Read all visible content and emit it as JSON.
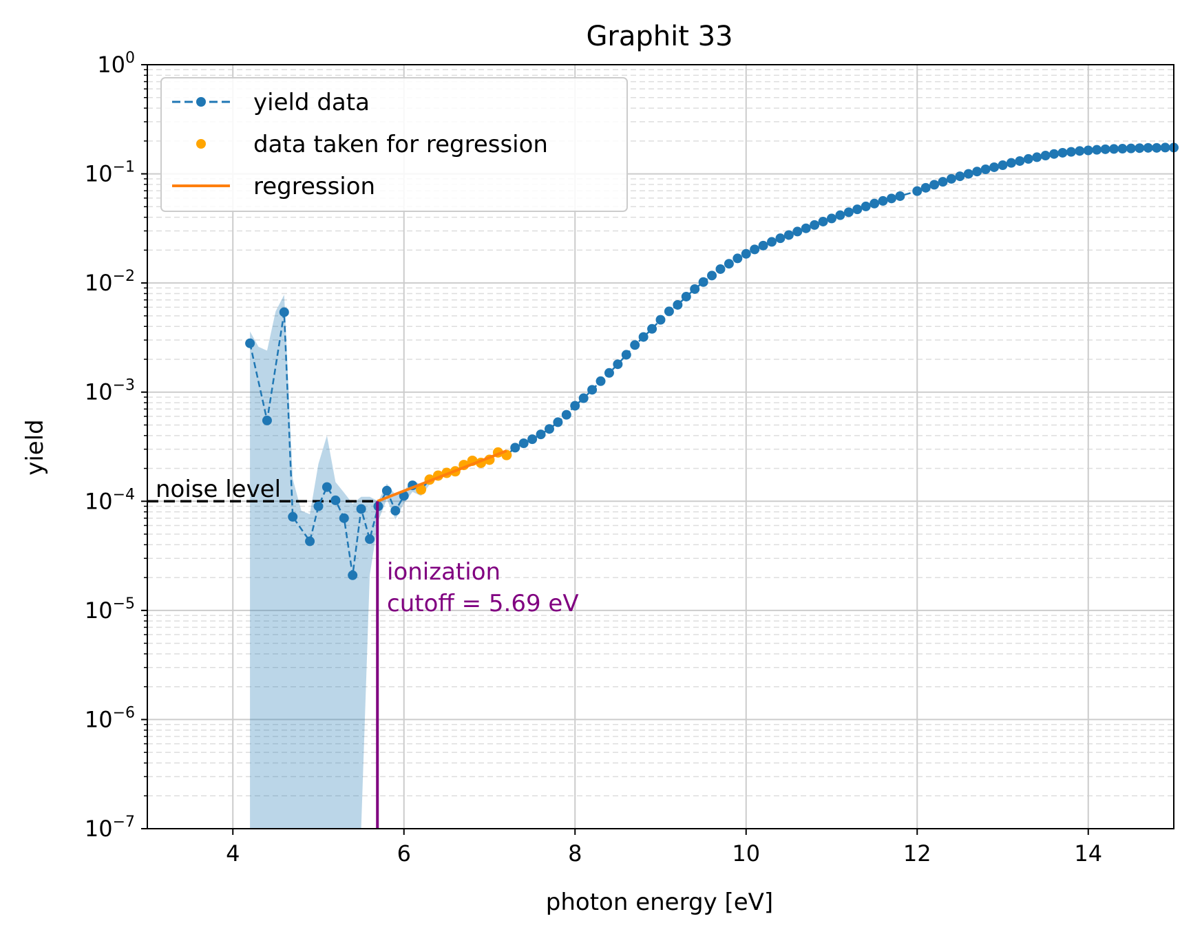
{
  "chart_data": {
    "type": "line",
    "title": "Graphit 33",
    "xlabel": "photon energy [eV]",
    "ylabel": "yield",
    "xlim": [
      3,
      15
    ],
    "ylim": [
      1e-07,
      1
    ],
    "yscale": "log",
    "grid": "on (major solid, minor dashed on y)",
    "legend_position": "top-left",
    "xticks": [
      "4",
      "6",
      "8",
      "10",
      "12",
      "14"
    ],
    "yticks": [
      {
        "base": "10",
        "exp": "−7"
      },
      {
        "base": "10",
        "exp": "−6"
      },
      {
        "base": "10",
        "exp": "−5"
      },
      {
        "base": "10",
        "exp": "−4"
      },
      {
        "base": "10",
        "exp": "−3"
      },
      {
        "base": "10",
        "exp": "−2"
      },
      {
        "base": "10",
        "exp": "−1"
      },
      {
        "base": "10",
        "exp": "0"
      }
    ],
    "legend": [
      {
        "label": "yield data",
        "style": "dashed-marker",
        "color": "#1f77b4"
      },
      {
        "label": "data taken for regression",
        "style": "marker",
        "color": "#ffa500"
      },
      {
        "label": "regression",
        "style": "line",
        "color": "#ff7f0e"
      }
    ],
    "series": [
      {
        "name": "yield data",
        "color": "#1f77b4",
        "x": [
          4.2,
          4.4,
          4.6,
          4.7,
          4.9,
          5.0,
          5.1,
          5.2,
          5.3,
          5.4,
          5.5,
          5.6,
          5.7,
          5.8,
          5.9,
          6.0,
          6.1,
          6.2,
          6.3,
          6.4,
          6.5,
          6.6,
          6.7,
          6.8,
          6.9,
          7.0,
          7.1,
          7.2,
          7.3,
          7.4,
          7.5,
          7.6,
          7.7,
          7.8,
          7.9,
          8.0,
          8.1,
          8.2,
          8.3,
          8.4,
          8.5,
          8.6,
          8.7,
          8.8,
          8.9,
          9.0,
          9.1,
          9.2,
          9.3,
          9.4,
          9.5,
          9.6,
          9.7,
          9.8,
          9.9,
          10.0,
          10.1,
          10.2,
          10.3,
          10.4,
          10.5,
          10.6,
          10.7,
          10.8,
          10.9,
          11.0,
          11.1,
          11.2,
          11.3,
          11.4,
          11.5,
          11.6,
          11.7,
          11.8,
          12.0,
          12.1,
          12.2,
          12.3,
          12.4,
          12.5,
          12.6,
          12.7,
          12.8,
          12.9,
          13.0,
          13.1,
          13.2,
          13.3,
          13.4,
          13.5,
          13.6,
          13.7,
          13.8,
          13.9,
          14.0,
          14.1,
          14.2,
          14.3,
          14.4,
          14.5,
          14.6,
          14.7,
          14.8,
          14.9,
          15.0
        ],
        "y": [
          0.0028,
          0.00055,
          0.0054,
          7.2e-05,
          4.3e-05,
          9e-05,
          0.000135,
          0.000102,
          7e-05,
          2.1e-05,
          8.5e-05,
          4.5e-05,
          9e-05,
          0.000125,
          8.2e-05,
          0.000112,
          0.00014,
          0.000128,
          0.000158,
          0.000172,
          0.000182,
          0.000188,
          0.000215,
          0.000235,
          0.000225,
          0.00024,
          0.00028,
          0.000265,
          0.00031,
          0.00034,
          0.00037,
          0.00041,
          0.00046,
          0.00053,
          0.00062,
          0.00075,
          0.00088,
          0.00105,
          0.00126,
          0.0015,
          0.0018,
          0.0022,
          0.0027,
          0.0032,
          0.0038,
          0.0046,
          0.0055,
          0.0063,
          0.0075,
          0.0088,
          0.0102,
          0.0117,
          0.0134,
          0.015,
          0.0168,
          0.0185,
          0.0203,
          0.022,
          0.0238,
          0.0257,
          0.0275,
          0.0296,
          0.0317,
          0.034,
          0.0365,
          0.039,
          0.0418,
          0.0445,
          0.0473,
          0.0503,
          0.0534,
          0.0565,
          0.0595,
          0.0625,
          0.0695,
          0.0745,
          0.0795,
          0.0845,
          0.09,
          0.095,
          0.1,
          0.105,
          0.11,
          0.115,
          0.12,
          0.126,
          0.131,
          0.137,
          0.142,
          0.147,
          0.152,
          0.156,
          0.159,
          0.162,
          0.164,
          0.166,
          0.168,
          0.169,
          0.17,
          0.171,
          0.172,
          0.173,
          0.173,
          0.174,
          0.174
        ]
      },
      {
        "name": "data taken for regression",
        "color": "#ffa500",
        "x": [
          6.2,
          6.3,
          6.4,
          6.5,
          6.6,
          6.7,
          6.8,
          6.9,
          7.0,
          7.1,
          7.2
        ],
        "y": [
          0.000128,
          0.000158,
          0.000172,
          0.000182,
          0.000188,
          0.000215,
          0.000235,
          0.000225,
          0.00024,
          0.00028,
          0.000265
        ]
      },
      {
        "name": "regression",
        "color": "#ff7f0e",
        "x": [
          5.69,
          7.2
        ],
        "y": [
          0.0001,
          0.00029
        ]
      }
    ],
    "uncertainty_band": {
      "color": "#1f77b4",
      "x": [
        4.2,
        4.3,
        4.4,
        4.5,
        4.6,
        4.7,
        4.8,
        4.9,
        5.0,
        5.1,
        5.2,
        5.3,
        5.4,
        5.5,
        5.6,
        5.7,
        5.8,
        5.9,
        6.0,
        6.1,
        6.2,
        6.3
      ],
      "upper": [
        0.0036,
        0.0026,
        0.0024,
        0.0055,
        0.0078,
        0.00016,
        8.2e-05,
        7.6e-05,
        0.00022,
        0.0004,
        0.00015,
        0.00012,
        9.5e-05,
        0.00011,
        0.00011,
        0.0001,
        0.000145,
        0.000115,
        0.000125,
        0.000155,
        0.000142,
        0.000172
      ],
      "lower": [
        1e-07,
        1e-07,
        1e-07,
        1e-07,
        1e-07,
        1e-07,
        1e-07,
        1e-07,
        1e-07,
        1e-07,
        1e-07,
        1e-07,
        1e-07,
        1e-07,
        2.1e-05,
        6.6e-05,
        0.000105,
        6.8e-05,
        9.6e-05,
        0.000122,
        0.000112,
        0.000142
      ]
    },
    "noise_level": {
      "label": "noise level",
      "y": 0.0001,
      "x_end": 5.69
    },
    "cutoff": {
      "x": 5.69,
      "label_line1": "ionization",
      "label_line2": "cutoff = 5.69 eV",
      "color": "#800080"
    }
  }
}
